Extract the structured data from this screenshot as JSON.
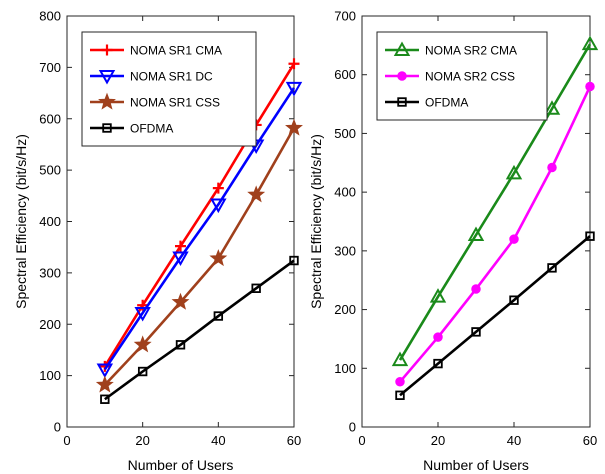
{
  "chart_data": [
    {
      "type": "line",
      "xlabel": "Number of Users",
      "ylabel": "Spectral Efficiency (bit/s/Hz)",
      "xlim": [
        0,
        60
      ],
      "ylim": [
        0,
        800
      ],
      "xticks": [
        0,
        20,
        40,
        60
      ],
      "yticks": [
        0,
        100,
        200,
        300,
        400,
        500,
        600,
        700,
        800
      ],
      "grid": false,
      "legend": "top-left",
      "x": [
        10,
        20,
        30,
        40,
        50,
        60
      ],
      "series": [
        {
          "name": "NOMA SR1 CMA",
          "color": "#ff0000",
          "marker": "plus",
          "values": [
            118,
            237,
            352,
            465,
            588,
            707
          ]
        },
        {
          "name": "NOMA SR1 DC",
          "color": "#0000ff",
          "marker": "triangle-down",
          "values": [
            112,
            222,
            330,
            433,
            548,
            660
          ]
        },
        {
          "name": "NOMA SR1 CSS",
          "color": "#a0401c",
          "marker": "star",
          "values": [
            82,
            160,
            243,
            328,
            452,
            582
          ]
        },
        {
          "name": "OFDMA",
          "color": "#000000",
          "marker": "square",
          "values": [
            54,
            108,
            160,
            216,
            270,
            324
          ]
        }
      ]
    },
    {
      "type": "line",
      "xlabel": "Number of Users",
      "ylabel": "Spectral Efficiency (bit/s/Hz)",
      "xlim": [
        0,
        60
      ],
      "ylim": [
        0,
        700
      ],
      "xticks": [
        0,
        20,
        40,
        60
      ],
      "yticks": [
        0,
        100,
        200,
        300,
        400,
        500,
        600,
        700
      ],
      "grid": false,
      "legend": "top-left",
      "x": [
        10,
        20,
        30,
        40,
        50,
        60
      ],
      "series": [
        {
          "name": "NOMA SR2 CMA",
          "color": "#1a8a1a",
          "marker": "triangle-up",
          "values": [
            114,
            222,
            327,
            432,
            542,
            652
          ]
        },
        {
          "name": "NOMA SR2 CSS",
          "color": "#ff00ff",
          "marker": "circle",
          "values": [
            77,
            153,
            235,
            320,
            442,
            580
          ]
        },
        {
          "name": "OFDMA",
          "color": "#000000",
          "marker": "square",
          "values": [
            54,
            108,
            162,
            216,
            271,
            325
          ]
        }
      ]
    }
  ]
}
